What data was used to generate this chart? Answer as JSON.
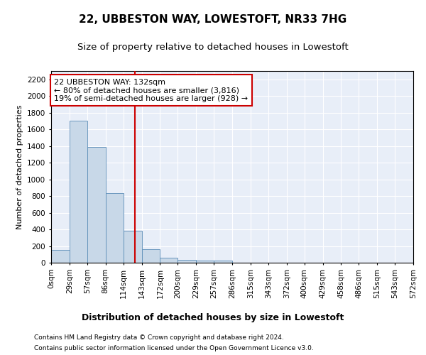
{
  "title": "22, UBBESTON WAY, LOWESTOFT, NR33 7HG",
  "subtitle": "Size of property relative to detached houses in Lowestoft",
  "xlabel": "Distribution of detached houses by size in Lowestoft",
  "ylabel": "Number of detached properties",
  "footnote1": "Contains HM Land Registry data © Crown copyright and database right 2024.",
  "footnote2": "Contains public sector information licensed under the Open Government Licence v3.0.",
  "annotation_line1": "22 UBBESTON WAY: 132sqm",
  "annotation_line2": "← 80% of detached houses are smaller (3,816)",
  "annotation_line3": "19% of semi-detached houses are larger (928) →",
  "bar_color": "#c8d8e8",
  "bar_edge_color": "#5b8db8",
  "vline_color": "#cc0000",
  "vline_x": 132,
  "annotation_box_edgecolor": "#cc0000",
  "background_color": "#e8eef8",
  "bin_edges": [
    0,
    29,
    57,
    86,
    114,
    143,
    172,
    200,
    229,
    257,
    286,
    315,
    343,
    372,
    400,
    429,
    458,
    486,
    515,
    543,
    572
  ],
  "bin_heights": [
    150,
    1700,
    1390,
    835,
    385,
    160,
    60,
    30,
    25,
    25,
    0,
    0,
    0,
    0,
    0,
    0,
    0,
    0,
    0,
    0
  ],
  "ylim": [
    0,
    2300
  ],
  "yticks": [
    0,
    200,
    400,
    600,
    800,
    1000,
    1200,
    1400,
    1600,
    1800,
    2000,
    2200
  ],
  "tick_labels": [
    "0sqm",
    "29sqm",
    "57sqm",
    "86sqm",
    "114sqm",
    "143sqm",
    "172sqm",
    "200sqm",
    "229sqm",
    "257sqm",
    "286sqm",
    "315sqm",
    "343sqm",
    "372sqm",
    "400sqm",
    "429sqm",
    "458sqm",
    "486sqm",
    "515sqm",
    "543sqm",
    "572sqm"
  ],
  "title_fontsize": 11,
  "subtitle_fontsize": 9.5,
  "ylabel_fontsize": 8,
  "xlabel_fontsize": 9,
  "tick_fontsize": 7.5,
  "annotation_fontsize": 8,
  "footnote_fontsize": 6.5
}
